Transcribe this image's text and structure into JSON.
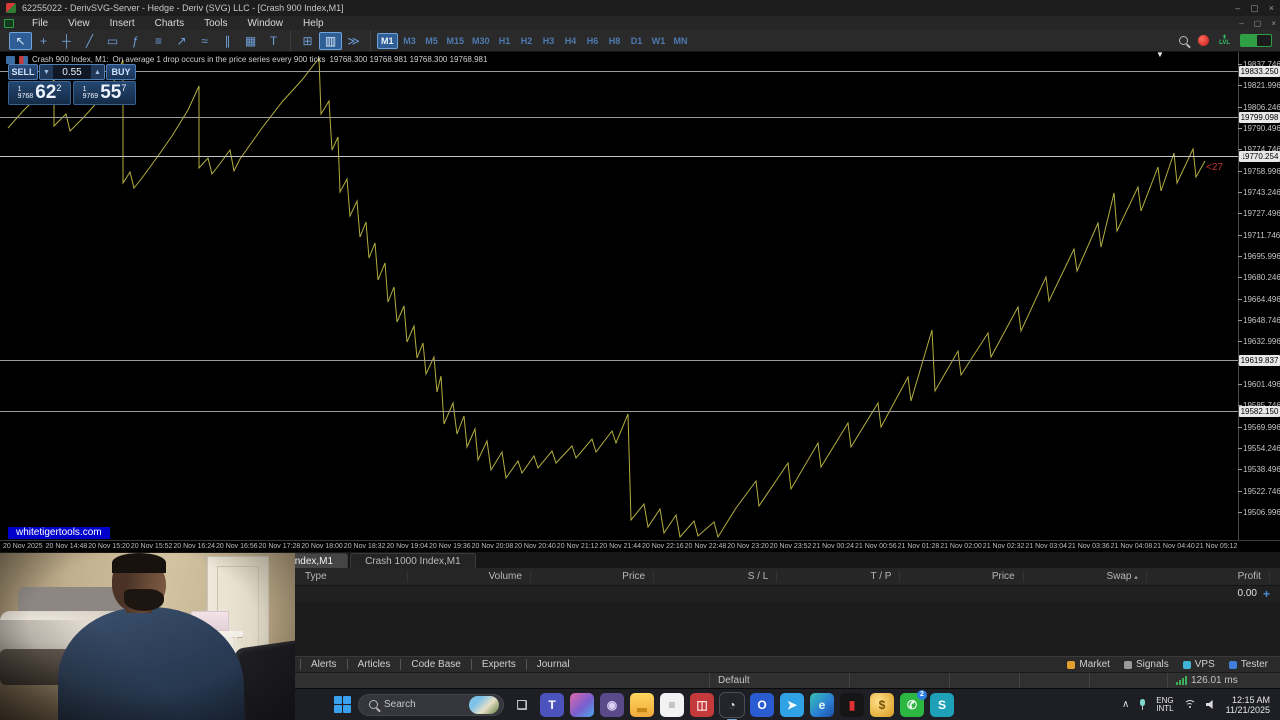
{
  "window": {
    "title": "62255022 - DerivSVG-Server - Hedge - Deriv (SVG) LLC - [Crash 900 Index,M1]",
    "controls": {
      "minimize": "–",
      "maximize": "▢",
      "close": "×"
    }
  },
  "menu": {
    "items": [
      "File",
      "View",
      "Insert",
      "Charts",
      "Tools",
      "Window",
      "Help"
    ]
  },
  "toolbar": {
    "tools": [
      {
        "name": "cursor-icon",
        "glyph": "↖",
        "selected": true
      },
      {
        "name": "crosshair-icon",
        "glyph": "+",
        "selected": false
      },
      {
        "name": "vline-tool-icon",
        "glyph": "┼",
        "selected": false
      },
      {
        "name": "trendline-tool-icon",
        "glyph": "╱",
        "selected": false
      },
      {
        "name": "channel-tool-icon",
        "glyph": "▭",
        "selected": false
      },
      {
        "name": "fibonacci-tool-icon",
        "glyph": "ƒ",
        "selected": false
      },
      {
        "name": "pitchfork-tool-icon",
        "glyph": "≡",
        "selected": false
      },
      {
        "name": "arrow-tool-icon",
        "glyph": "↗",
        "selected": false
      },
      {
        "name": "waves-tool-icon",
        "glyph": "≈",
        "selected": false
      },
      {
        "name": "shapes-tool-icon",
        "glyph": "∥",
        "selected": false
      },
      {
        "name": "indicators-icon",
        "glyph": "▦",
        "selected": false
      },
      {
        "name": "text-tool-icon",
        "glyph": "T",
        "selected": false
      }
    ],
    "view_tools": [
      {
        "name": "grid-icon",
        "glyph": "⊞",
        "selected": false
      },
      {
        "name": "bars-view-icon",
        "glyph": "▥",
        "selected": true
      },
      {
        "name": "ticks-view-icon",
        "glyph": "≫",
        "selected": false
      }
    ],
    "timeframes": [
      {
        "label": "M1",
        "selected": true
      },
      {
        "label": "M3",
        "selected": false
      },
      {
        "label": "M5",
        "selected": false
      },
      {
        "label": "M15",
        "selected": false
      },
      {
        "label": "M30",
        "selected": false
      },
      {
        "label": "H1",
        "selected": false
      },
      {
        "label": "H2",
        "selected": false
      },
      {
        "label": "H3",
        "selected": false
      },
      {
        "label": "H4",
        "selected": false
      },
      {
        "label": "H6",
        "selected": false
      },
      {
        "label": "H8",
        "selected": false
      },
      {
        "label": "D1",
        "selected": false
      },
      {
        "label": "W1",
        "selected": false
      },
      {
        "label": "MN",
        "selected": false
      }
    ]
  },
  "one_click": {
    "sell_label": "SELL",
    "buy_label": "BUY",
    "volume": "0.55",
    "step_down": "▼",
    "step_up": "▲",
    "sell_small_top": "1",
    "sell_small_bottom": "9768",
    "sell_big": "62",
    "sell_sup": "2",
    "buy_small_top": "1",
    "buy_small_bottom": "9769",
    "buy_big": "55",
    "buy_sup": "7"
  },
  "chart": {
    "header": {
      "symbol": "Crash 900 Index, M1:",
      "description": "On average 1 drop occurs in the price series every 900 ticks",
      "ohlc": "19768.300 19768.981 19768.300 19768.981"
    },
    "watermark": "whitetigertools.com",
    "shift_marker": "▼",
    "tick_counter": "<27",
    "line_color": "#b3ae3e",
    "price_axis_ticks": [
      "19837.746",
      "19821.996",
      "19806.246",
      "19790.496",
      "19774.746",
      "19758.996",
      "19743.246",
      "19727.496",
      "19711.746",
      "19695.996",
      "19680.246",
      "19664.496",
      "19648.746",
      "19632.996",
      "19617.246",
      "19601.496",
      "19585.746",
      "19569.996",
      "19554.246",
      "19538.496",
      "19522.746",
      "19506.996"
    ],
    "levels": [
      {
        "price": "19833.250",
        "current": false
      },
      {
        "price": "19799.098",
        "current": false
      },
      {
        "price": "19770.254",
        "current": true
      },
      {
        "price": "19619.837",
        "current": false
      },
      {
        "price": "19582.150",
        "current": false
      }
    ],
    "time_axis": [
      "20 Nov 2025",
      "20 Nov 14:48",
      "20 Nov 15:20",
      "20 Nov 15:52",
      "20 Nov 16:24",
      "20 Nov 16:56",
      "20 Nov 17:28",
      "20 Nov 18:00",
      "20 Nov 18:32",
      "20 Nov 19:04",
      "20 Nov 19:36",
      "20 Nov 20:08",
      "20 Nov 20:40",
      "20 Nov 21:12",
      "20 Nov 21:44",
      "20 Nov 22:16",
      "20 Nov 22:48",
      "20 Nov 23:20",
      "20 Nov 23:52",
      "21 Nov 00:24",
      "21 Nov 00:56",
      "21 Nov 01:28",
      "21 Nov 02:00",
      "21 Nov 02:32",
      "21 Nov 03:04",
      "21 Nov 03:36",
      "21 Nov 04:08",
      "21 Nov 04:40",
      "21 Nov 05:12"
    ],
    "line_points": "8,128 24,110 40,94 54,80 54,126 66,114 70,131 84,117 100,99 114,81 123,60 123,183 130,172 134,188 142,178 158,156 172,136 188,110 199,86 199,168 208,158 212,174 222,161 230,150 234,171 240,159 262,128 282,102 302,80 319,58 321,114 329,101 332,150 338,137 340,192 347,179 350,216 357,201 360,237 366,222 369,258 375,243 378,280 385,263 388,302 394,287 397,322 404,306 407,342 414,326 417,358 423,343 426,374 434,357 437,392 441,376 444,424 453,403 457,434 464,416 467,447 475,429 478,460 487,441 491,470 502,452 506,478 518,461 522,473 534,456 538,468 552,451 556,463 572,446 576,458 592,439 596,452 612,431 616,443 628,414 631,520 644,504 648,527 660,509 664,533 676,515 680,537 694,521 698,536 714,522 718,537 736,508 756,481 759,506 788,463 791,489 818,443 821,467 848,423 851,447 878,403 881,427 908,377 911,401 932,330 935,391 958,351 961,375 988,333 991,357 1018,307 1021,331 1046,277 1049,301 1074,249 1077,271 1098,223 1101,247 1114,193 1117,231 1138,187 1141,211 1158,167 1161,191 1174,153 1177,183 1193,149 1196,177 1205,161"
  },
  "trade_panel": {
    "chart_tabs": [
      {
        "label": "Crash 900 Index,M1",
        "active": true
      },
      {
        "label": "Crash 1000 Index,M1",
        "active": false
      }
    ],
    "columns": [
      {
        "label": "Type",
        "sort": ""
      },
      {
        "label": "Volume",
        "sort": ""
      },
      {
        "label": "Price",
        "sort": ""
      },
      {
        "label": "S / L",
        "sort": ""
      },
      {
        "label": "T / P",
        "sort": ""
      },
      {
        "label": "Price",
        "sort": ""
      },
      {
        "label": "Swap",
        "sort": "▴"
      },
      {
        "label": "Profit",
        "sort": ""
      }
    ],
    "profit_total": "0.00",
    "add_button": "+",
    "bottom_tabs": [
      "Alerts",
      "Articles",
      "Code Base",
      "Experts",
      "Journal"
    ],
    "services": [
      {
        "label": "Market",
        "color": "#e0a030"
      },
      {
        "label": "Signals",
        "color": "#9a9a9a"
      },
      {
        "label": "VPS",
        "color": "#3fb4d8"
      },
      {
        "label": "Tester",
        "color": "#4080d8"
      }
    ]
  },
  "status_bar": {
    "profile": "Default",
    "latency": "126.01 ms"
  },
  "taskbar": {
    "search_label": "Search",
    "apps": [
      {
        "name": "task-view-icon",
        "glyph": "❏",
        "bg": "transparent",
        "fg": "#c8ccd4",
        "active": false,
        "badge": ""
      },
      {
        "name": "teams-icon",
        "glyph": "T",
        "bg": "#4b53bc",
        "fg": "#ffffff",
        "active": false,
        "badge": ""
      },
      {
        "name": "copilot-icon",
        "glyph": "",
        "bg": "linear-gradient(135deg,#e066a6,#7a5fd0 55%,#4aa8e8)",
        "fg": "#fff",
        "active": false,
        "badge": ""
      },
      {
        "name": "camera-icon",
        "glyph": "◉",
        "bg": "#5a4a8a",
        "fg": "#ddd2f5",
        "active": false,
        "badge": ""
      },
      {
        "name": "file-explorer-icon",
        "glyph": "▂",
        "bg": "linear-gradient(180deg,#ffd75e,#f0a93a)",
        "fg": "#c8861a",
        "active": false,
        "badge": ""
      },
      {
        "name": "document-icon",
        "glyph": "≡",
        "bg": "#f2f2f2",
        "fg": "#8a8a8a",
        "active": false,
        "badge": ""
      },
      {
        "name": "pinned-red-app-icon",
        "glyph": "◫",
        "bg": "#c43a3a",
        "fg": "#ffe2e2",
        "active": false,
        "badge": ""
      },
      {
        "name": "obs-studio-icon",
        "glyph": "◔",
        "bg": "#23252b",
        "fg": "#e8e8e8",
        "active": true,
        "badge": ""
      },
      {
        "name": "outlook-icon",
        "glyph": "O",
        "bg": "#2a5bd0",
        "fg": "#ffffff",
        "active": false,
        "badge": ""
      },
      {
        "name": "telegram-icon",
        "glyph": "➤",
        "bg": "#30a3e6",
        "fg": "#ffffff",
        "active": false,
        "badge": ""
      },
      {
        "name": "edge-icon",
        "glyph": "e",
        "bg": "linear-gradient(135deg,#35c1b5,#2b7cd4 60%,#1a4fa0)",
        "fg": "#eafff8",
        "active": false,
        "badge": ""
      },
      {
        "name": "black-red-app-icon",
        "glyph": "▮",
        "bg": "#151515",
        "fg": "#e03030",
        "active": false,
        "badge": ""
      },
      {
        "name": "gold-app-icon",
        "glyph": "$",
        "bg": "radial-gradient(circle at 35% 35%,#ffe08a,#d99a1f)",
        "fg": "#7a5200",
        "active": false,
        "badge": ""
      },
      {
        "name": "whatsapp-icon",
        "glyph": "✆",
        "bg": "#2bb741",
        "fg": "#ffffff",
        "active": false,
        "badge": "2"
      },
      {
        "name": "surfshark-icon",
        "glyph": "S",
        "bg": "#1ea0b8",
        "fg": "#ffffff",
        "active": false,
        "badge": ""
      }
    ],
    "tray": {
      "chevron": "∧",
      "lang_line1": "ENG",
      "lang_line2": "INTL",
      "time": "12:15 AM",
      "date": "11/21/2025"
    }
  }
}
